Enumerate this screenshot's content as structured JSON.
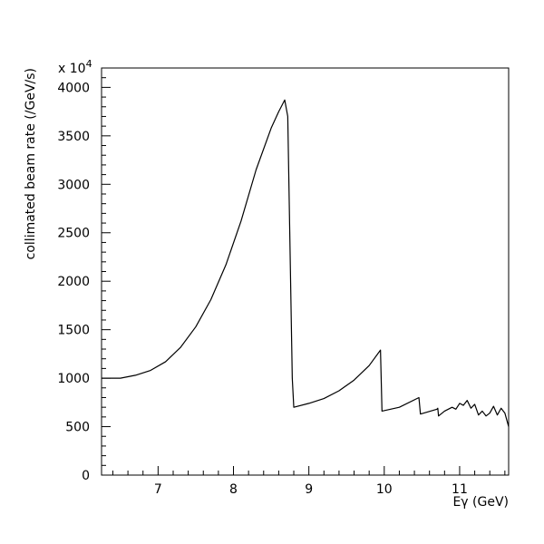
{
  "chart_data": {
    "type": "line",
    "title": "",
    "xlabel": "Eγ (GeV)",
    "ylabel": "collimated beam rate (/GeV/s)",
    "y_multiplier_label": "x 10",
    "y_multiplier_exponent": "4",
    "xlim": [
      6.25,
      11.65
    ],
    "ylim": [
      0,
      4200
    ],
    "x_ticks": [
      7,
      8,
      9,
      10,
      11
    ],
    "x_tick_labels": [
      "7",
      "8",
      "9",
      "10",
      "11"
    ],
    "y_ticks": [
      0,
      500,
      1000,
      1500,
      2000,
      2500,
      3000,
      3500,
      4000
    ],
    "y_tick_labels": [
      "0",
      "500",
      "1000",
      "1500",
      "2000",
      "2500",
      "3000",
      "3500",
      "4000"
    ],
    "grid": false,
    "series": [
      {
        "name": "",
        "x": [
          6.25,
          6.5,
          6.7,
          6.9,
          7.1,
          7.3,
          7.5,
          7.7,
          7.9,
          8.1,
          8.3,
          8.5,
          8.6,
          8.68,
          8.72,
          8.78,
          8.8,
          9.0,
          9.2,
          9.4,
          9.6,
          9.8,
          9.95,
          9.97,
          10.2,
          10.46,
          10.48,
          10.7,
          10.71,
          10.72,
          10.8,
          10.9,
          10.95,
          11.0,
          11.05,
          11.1,
          11.15,
          11.2,
          11.25,
          11.3,
          11.35,
          11.4,
          11.45,
          11.5,
          11.55,
          11.6,
          11.65
        ],
        "values": [
          1000,
          1000,
          1030,
          1080,
          1170,
          1320,
          1530,
          1810,
          2170,
          2620,
          3150,
          3580,
          3750,
          3870,
          3700,
          1000,
          700,
          740,
          790,
          870,
          980,
          1130,
          1290,
          660,
          700,
          800,
          630,
          680,
          690,
          610,
          660,
          700,
          680,
          740,
          720,
          770,
          690,
          730,
          620,
          660,
          610,
          640,
          710,
          620,
          690,
          640,
          500
        ]
      }
    ]
  }
}
